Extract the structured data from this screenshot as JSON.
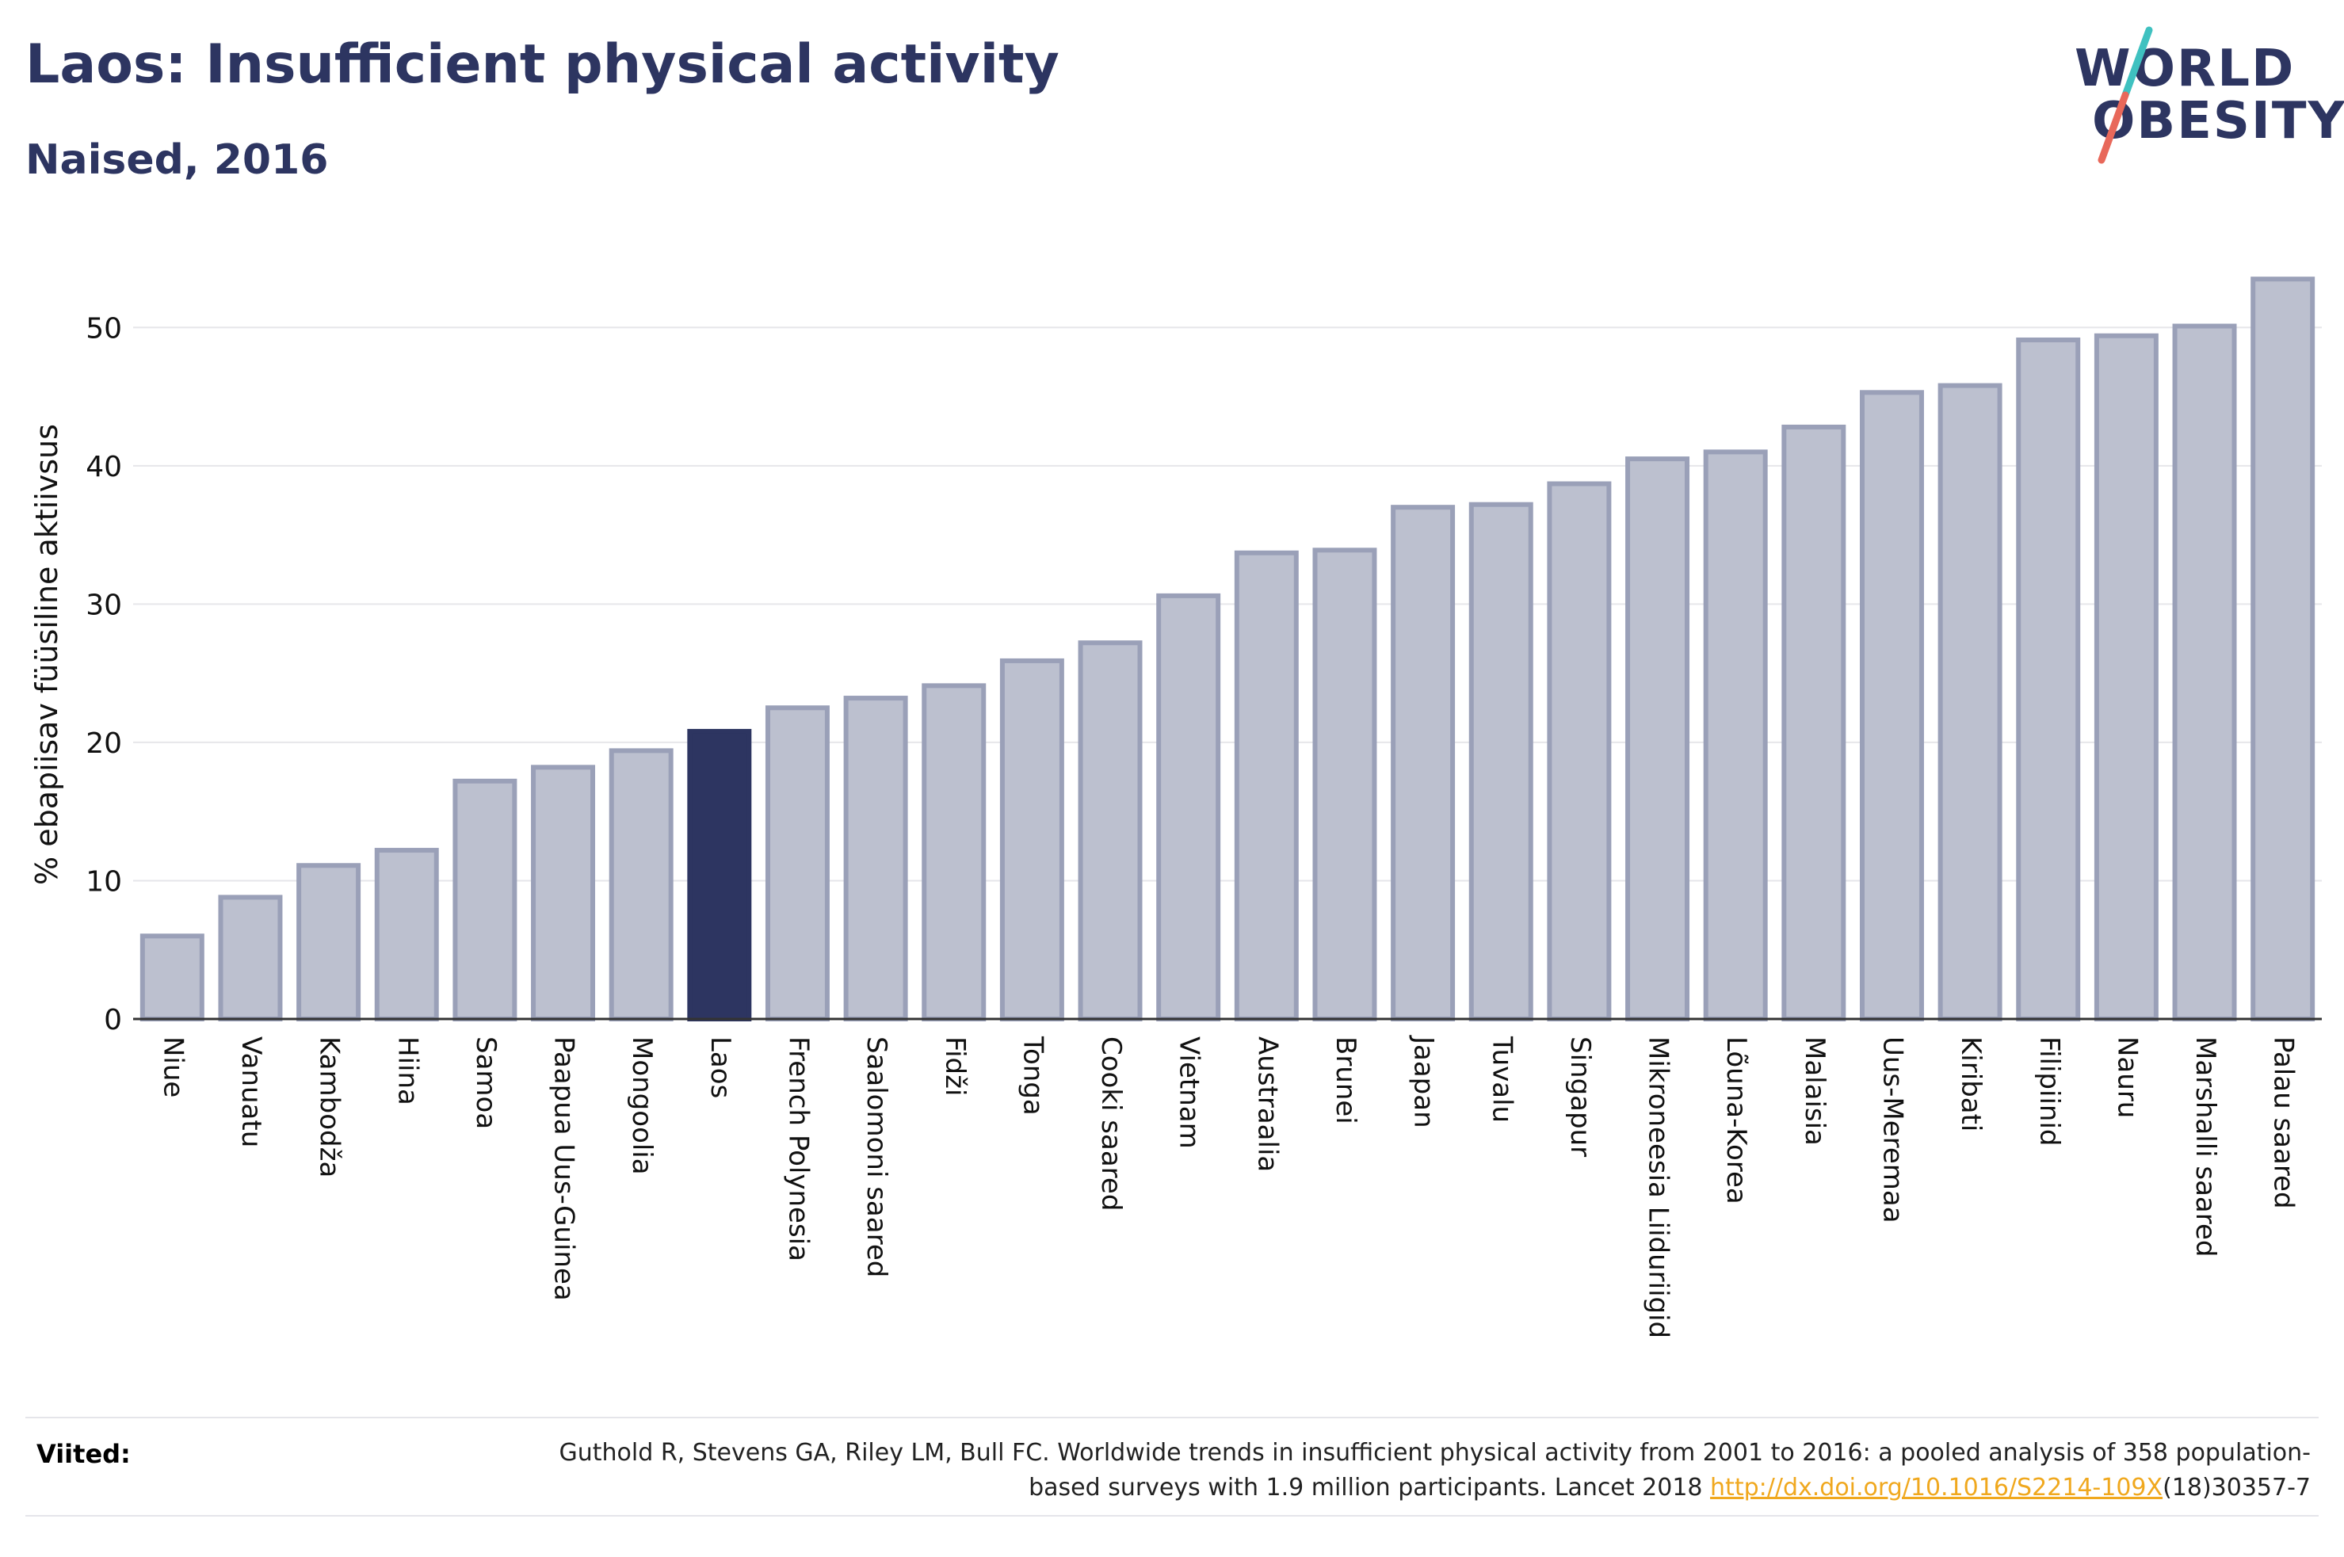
{
  "header": {
    "title": "Laos: Insufficient physical activity",
    "subtitle": "Naised, 2016"
  },
  "logo": {
    "line1": "WORLD",
    "line2": "OBESITY",
    "colors": {
      "text": "#2d3561",
      "slash_top": "#3fc1c0",
      "slash_bottom": "#e8685a"
    }
  },
  "chart_data": {
    "type": "bar",
    "title": "Laos: Insufficient physical activity",
    "subtitle": "Naised, 2016",
    "ylabel": "% ebapiisav füüsiline aktiivsus",
    "xlabel": "",
    "ylim": [
      0,
      55
    ],
    "yticks": [
      0,
      10,
      20,
      30,
      40,
      50
    ],
    "grid": true,
    "legend": "none",
    "highlight": "Laos",
    "categories": [
      "Niue",
      "Vanuatu",
      "Kambodža",
      "Hiina",
      "Samoa",
      "Paapua Uus-Guinea",
      "Mongoolia",
      "Laos",
      "French Polynesia",
      "Saalomoni saared",
      "Fidži",
      "Tonga",
      "Cooki saared",
      "Vietnam",
      "Austraalia",
      "Brunei",
      "Jaapan",
      "Tuvalu",
      "Singapur",
      "Mikroneesia Liiduriigid",
      "Lõuna-Korea",
      "Malaisia",
      "Uus-Meremaa",
      "Kiribati",
      "Filipiinid",
      "Nauru",
      "Marshalli saared",
      "Palau saared"
    ],
    "values": [
      6.0,
      8.8,
      11.1,
      12.2,
      17.2,
      18.2,
      19.4,
      20.8,
      22.5,
      23.2,
      24.1,
      25.9,
      27.2,
      30.6,
      33.7,
      33.9,
      37.0,
      37.2,
      38.7,
      40.5,
      41.0,
      42.8,
      45.3,
      45.8,
      49.1,
      49.4,
      50.1,
      53.5
    ],
    "colors": {
      "bar": "#bcc0cf",
      "bar_border": "#9aa0b8",
      "highlight": "#2d3561",
      "grid": "#e6e6ea",
      "axis": "#333333"
    }
  },
  "references": {
    "label": "Viited:",
    "text_before": "Guthold R, Stevens GA, Riley LM, Bull FC. Worldwide trends in insufficient physical activity from 2001 to 2016: a pooled analysis of 358 population-based surveys with 1.9 million participants. Lancet 2018 ",
    "link": "http://dx.doi.org/10.1016/S2214-109X",
    "text_after": "(18)30357-7"
  }
}
